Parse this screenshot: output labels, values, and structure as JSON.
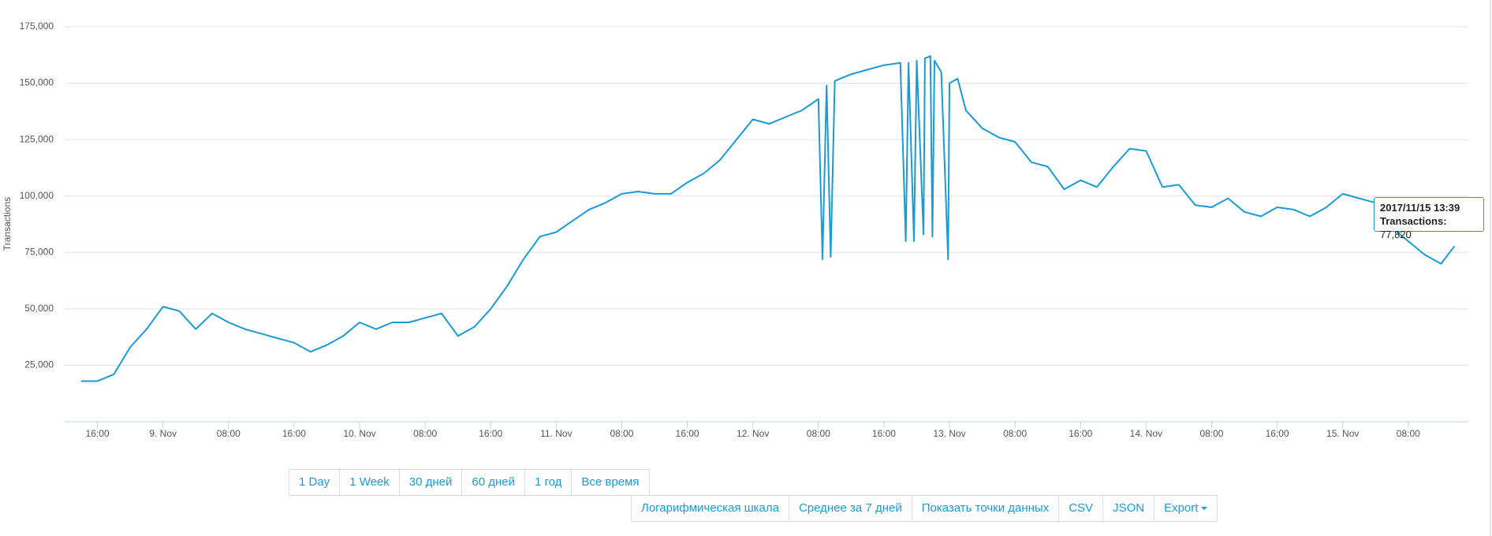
{
  "chart_data": {
    "type": "line",
    "y_label": "Transactions",
    "grid": true,
    "x": [
      "2017/11/08 14:00",
      "2017/11/08 16:00",
      "2017/11/08 18:00",
      "2017/11/08 20:00",
      "2017/11/08 22:00",
      "2017/11/09 00:00",
      "2017/11/09 02:00",
      "2017/11/09 04:00",
      "2017/11/09 06:00",
      "2017/11/09 08:00",
      "2017/11/09 10:00",
      "2017/11/09 12:00",
      "2017/11/09 14:00",
      "2017/11/09 16:00",
      "2017/11/09 18:00",
      "2017/11/09 20:00",
      "2017/11/09 22:00",
      "2017/11/10 00:00",
      "2017/11/10 02:00",
      "2017/11/10 04:00",
      "2017/11/10 06:00",
      "2017/11/10 08:00",
      "2017/11/10 10:00",
      "2017/11/10 12:00",
      "2017/11/10 14:00",
      "2017/11/10 16:00",
      "2017/11/10 18:00",
      "2017/11/10 20:00",
      "2017/11/10 22:00",
      "2017/11/11 00:00",
      "2017/11/11 02:00",
      "2017/11/11 04:00",
      "2017/11/11 06:00",
      "2017/11/11 08:00",
      "2017/11/11 10:00",
      "2017/11/11 12:00",
      "2017/11/11 14:00",
      "2017/11/11 16:00",
      "2017/11/11 18:00",
      "2017/11/11 20:00",
      "2017/11/11 22:00",
      "2017/11/12 00:00",
      "2017/11/12 02:00",
      "2017/11/12 04:00",
      "2017/11/12 06:00",
      "2017/11/12 08:00",
      "2017/11/12 08:30",
      "2017/11/12 09:00",
      "2017/11/12 09:30",
      "2017/11/12 10:00",
      "2017/11/12 12:00",
      "2017/11/12 14:00",
      "2017/11/12 16:00",
      "2017/11/12 18:00",
      "2017/11/12 18:40",
      "2017/11/12 19:00",
      "2017/11/12 19:40",
      "2017/11/12 20:00",
      "2017/11/12 20:50",
      "2017/11/12 21:00",
      "2017/11/12 21:40",
      "2017/11/12 21:55",
      "2017/11/12 22:10",
      "2017/11/12 23:00",
      "2017/11/12 23:50",
      "2017/11/13 00:00",
      "2017/11/13 01:00",
      "2017/11/13 02:00",
      "2017/11/13 04:00",
      "2017/11/13 06:00",
      "2017/11/13 08:00",
      "2017/11/13 10:00",
      "2017/11/13 12:00",
      "2017/11/13 14:00",
      "2017/11/13 16:00",
      "2017/11/13 18:00",
      "2017/11/13 20:00",
      "2017/11/13 22:00",
      "2017/11/14 00:00",
      "2017/11/14 02:00",
      "2017/11/14 04:00",
      "2017/11/14 06:00",
      "2017/11/14 08:00",
      "2017/11/14 10:00",
      "2017/11/14 12:00",
      "2017/11/14 14:00",
      "2017/11/14 16:00",
      "2017/11/14 18:00",
      "2017/11/14 20:00",
      "2017/11/14 22:00",
      "2017/11/15 00:00",
      "2017/11/15 02:00",
      "2017/11/15 04:00",
      "2017/11/15 06:00",
      "2017/11/15 08:00",
      "2017/11/15 10:00",
      "2017/11/15 12:00",
      "2017/11/15 13:39"
    ],
    "series": [
      {
        "name": "Transactions",
        "color": "#1a9ad6",
        "values": [
          18000,
          18000,
          21000,
          33000,
          41000,
          51000,
          49000,
          41000,
          48000,
          44000,
          41000,
          39000,
          37000,
          35000,
          31000,
          34000,
          38000,
          44000,
          41000,
          44000,
          44000,
          46000,
          48000,
          38000,
          42000,
          50000,
          60000,
          72000,
          82000,
          84000,
          89000,
          94000,
          97000,
          101000,
          102000,
          101000,
          101000,
          106000,
          110000,
          116000,
          125000,
          134000,
          132000,
          135000,
          138000,
          143000,
          72000,
          149000,
          73000,
          151000,
          154000,
          156000,
          158000,
          159000,
          80000,
          159000,
          80000,
          160000,
          83000,
          161000,
          162000,
          82000,
          160000,
          155000,
          72000,
          150000,
          152000,
          138000,
          130000,
          126000,
          124000,
          115000,
          113000,
          103000,
          107000,
          104000,
          113000,
          121000,
          120000,
          104000,
          105000,
          96000,
          95000,
          99000,
          93000,
          91000,
          95000,
          94000,
          91000,
          95000,
          101000,
          99000,
          97000,
          86000,
          80000,
          74000,
          70000,
          77820
        ]
      }
    ],
    "xlim": [
      "2017/11/08 12:00",
      "2017/11/15 15:20"
    ],
    "xticks": [
      {
        "value": "2017/11/08 16:00",
        "label": "16:00"
      },
      {
        "value": "2017/11/09 00:00",
        "label": "9. Nov"
      },
      {
        "value": "2017/11/09 08:00",
        "label": "08:00"
      },
      {
        "value": "2017/11/09 16:00",
        "label": "16:00"
      },
      {
        "value": "2017/11/10 00:00",
        "label": "10. Nov"
      },
      {
        "value": "2017/11/10 08:00",
        "label": "08:00"
      },
      {
        "value": "2017/11/10 16:00",
        "label": "16:00"
      },
      {
        "value": "2017/11/11 00:00",
        "label": "11. Nov"
      },
      {
        "value": "2017/11/11 08:00",
        "label": "08:00"
      },
      {
        "value": "2017/11/11 16:00",
        "label": "16:00"
      },
      {
        "value": "2017/11/12 00:00",
        "label": "12. Nov"
      },
      {
        "value": "2017/11/12 08:00",
        "label": "08:00"
      },
      {
        "value": "2017/11/12 16:00",
        "label": "16:00"
      },
      {
        "value": "2017/11/13 00:00",
        "label": "13. Nov"
      },
      {
        "value": "2017/11/13 08:00",
        "label": "08:00"
      },
      {
        "value": "2017/11/13 16:00",
        "label": "16:00"
      },
      {
        "value": "2017/11/14 00:00",
        "label": "14. Nov"
      },
      {
        "value": "2017/11/14 08:00",
        "label": "08:00"
      },
      {
        "value": "2017/11/14 16:00",
        "label": "16:00"
      },
      {
        "value": "2017/11/15 00:00",
        "label": "15. Nov"
      },
      {
        "value": "2017/11/15 08:00",
        "label": "08:00"
      }
    ],
    "ylim": [
      0,
      175000
    ],
    "yticks": [
      {
        "value": 25000,
        "label": "25,000"
      },
      {
        "value": 50000,
        "label": "50,000"
      },
      {
        "value": 75000,
        "label": "75,000"
      },
      {
        "value": 100000,
        "label": "100,000"
      },
      {
        "value": 125000,
        "label": "125,000"
      },
      {
        "value": 150000,
        "label": "150,000"
      },
      {
        "value": 175000,
        "label": "175,000"
      }
    ],
    "tooltip": {
      "title": "2017/11/15 13:39",
      "name": "Transactions",
      "value": "77,820"
    }
  },
  "controls": {
    "ranges": [
      "1 Day",
      "1 Week",
      "30 дней",
      "60 дней",
      "1 год",
      "Все время"
    ],
    "options": [
      "Логарифмическая шкала",
      "Среднее за 7 дней",
      "Показать точки данных",
      "CSV",
      "JSON",
      "Export"
    ]
  }
}
